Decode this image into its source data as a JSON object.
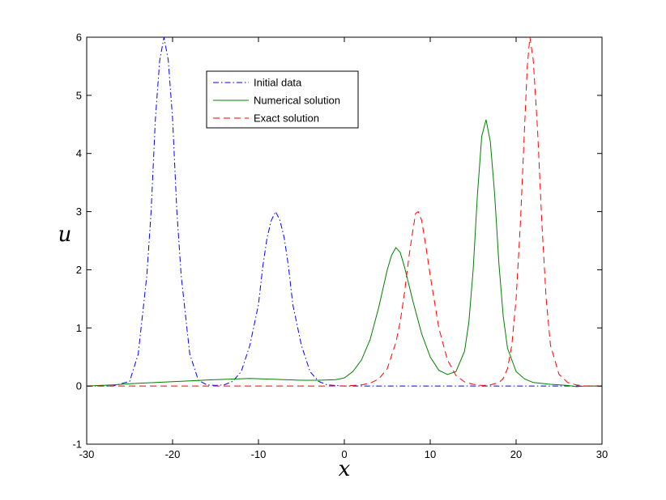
{
  "chart_data": {
    "type": "line",
    "title": "",
    "xlabel": "x",
    "ylabel": "u",
    "xlim": [
      -30,
      30
    ],
    "ylim": [
      -1,
      6
    ],
    "xticks": [
      -30,
      -20,
      -10,
      0,
      10,
      20,
      30
    ],
    "yticks": [
      -1,
      0,
      1,
      2,
      3,
      4,
      5,
      6
    ],
    "grid": false,
    "legend_position": "top-left-inside",
    "series": [
      {
        "name": "Initial data",
        "color": "#0000ff",
        "style": "dash-dot",
        "x": [
          -30,
          -27,
          -25,
          -24,
          -23,
          -22.5,
          -22,
          -21.5,
          -21,
          -20.5,
          -20,
          -19.5,
          -19,
          -18,
          -17,
          -16,
          -15,
          -14,
          -13,
          -12,
          -11,
          -10,
          -9.5,
          -9,
          -8.5,
          -8,
          -7.5,
          -7,
          -6.5,
          -6,
          -5,
          -4,
          -3,
          -2,
          0,
          5,
          10,
          15,
          20,
          25,
          30
        ],
        "y": [
          0.0,
          0.0,
          0.08,
          0.55,
          1.9,
          3.0,
          4.6,
          5.6,
          6.0,
          5.6,
          4.6,
          3.0,
          1.9,
          0.55,
          0.1,
          0.02,
          0.01,
          0.02,
          0.08,
          0.25,
          0.7,
          1.4,
          2.05,
          2.55,
          2.85,
          3.0,
          2.85,
          2.55,
          2.05,
          1.4,
          0.7,
          0.25,
          0.08,
          0.02,
          0.0,
          0.0,
          0.0,
          0.0,
          0.0,
          0.0,
          0.0
        ]
      },
      {
        "name": "Numerical solution",
        "color": "#008000",
        "style": "solid",
        "x": [
          -30,
          -27,
          -25,
          -22,
          -18,
          -15,
          -13,
          -11,
          -9,
          -7,
          -5,
          -3,
          -1,
          0,
          1,
          2,
          3,
          4,
          5,
          5.5,
          6,
          6.5,
          7,
          8,
          9,
          10,
          11,
          12,
          13,
          14,
          14.5,
          15,
          15.5,
          16,
          16.5,
          17,
          17.5,
          18,
          18.5,
          19,
          20,
          21,
          22,
          24,
          26,
          27,
          28,
          30
        ],
        "y": [
          0.0,
          0.02,
          0.04,
          0.06,
          0.09,
          0.11,
          0.12,
          0.13,
          0.12,
          0.11,
          0.1,
          0.1,
          0.11,
          0.14,
          0.25,
          0.45,
          0.8,
          1.35,
          2.0,
          2.25,
          2.38,
          2.3,
          2.05,
          1.45,
          0.9,
          0.5,
          0.27,
          0.2,
          0.25,
          0.6,
          1.1,
          2.0,
          3.3,
          4.3,
          4.58,
          4.2,
          3.3,
          2.1,
          1.2,
          0.65,
          0.25,
          0.12,
          0.06,
          0.03,
          0.01,
          -0.01,
          0.0,
          0.0
        ]
      },
      {
        "name": "Exact solution",
        "color": "#ff0000",
        "style": "dashed",
        "x": [
          -30,
          -20,
          -10,
          0,
          2,
          3,
          4,
          5,
          6,
          6.5,
          7,
          7.5,
          8,
          8.3,
          8.6,
          9,
          9.5,
          10,
          11,
          12,
          13,
          14,
          15,
          16,
          17,
          18,
          18.5,
          19,
          19.5,
          20,
          20.5,
          21,
          21.3,
          21.6,
          22,
          22.5,
          23,
          23.5,
          24,
          25,
          26,
          27,
          28,
          30
        ],
        "y": [
          0.0,
          0.0,
          0.0,
          0.0,
          0.02,
          0.05,
          0.12,
          0.3,
          0.75,
          1.1,
          1.6,
          2.2,
          2.7,
          2.97,
          3.0,
          2.85,
          2.4,
          1.9,
          1.0,
          0.45,
          0.18,
          0.07,
          0.03,
          0.01,
          0.02,
          0.06,
          0.13,
          0.3,
          0.7,
          1.5,
          2.8,
          4.5,
          5.5,
          6.0,
          5.6,
          4.4,
          2.8,
          1.5,
          0.7,
          0.2,
          0.06,
          0.02,
          0.0,
          0.0
        ]
      }
    ]
  }
}
